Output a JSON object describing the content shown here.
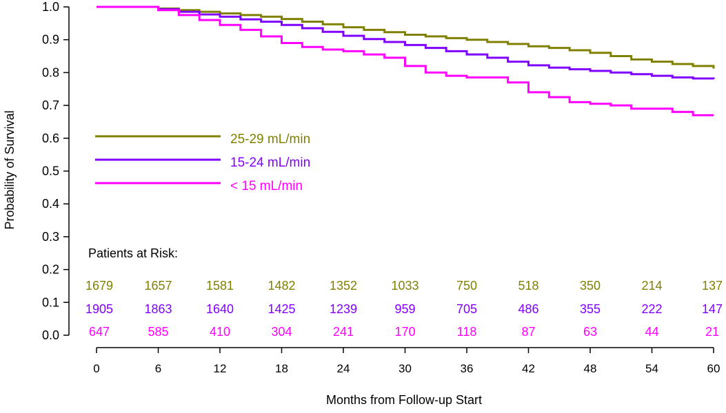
{
  "chart_data": {
    "type": "line",
    "title": "",
    "xlabel": "Months from Follow-up Start",
    "ylabel": "Probability of Survival",
    "xlim": [
      0,
      60
    ],
    "ylim": [
      0,
      1
    ],
    "xticks": [
      0,
      6,
      12,
      18,
      24,
      30,
      36,
      42,
      48,
      54,
      60
    ],
    "yticks": [
      "0.0",
      "0.1",
      "0.2",
      "0.3",
      "0.4",
      "0.5",
      "0.6",
      "0.7",
      "0.8",
      "0.9",
      "1.0"
    ],
    "grid": false,
    "legend_position": "left-middle",
    "series": [
      {
        "name": "25-29 mL/min",
        "color": "#808000",
        "x": [
          0,
          4,
          6,
          8,
          10,
          12,
          14,
          16,
          18,
          20,
          22,
          24,
          26,
          28,
          30,
          32,
          34,
          36,
          38,
          40,
          42,
          44,
          46,
          48,
          50,
          52,
          54,
          56,
          58,
          60
        ],
        "y": [
          1.0,
          1.0,
          0.995,
          0.99,
          0.985,
          0.98,
          0.975,
          0.97,
          0.963,
          0.955,
          0.947,
          0.938,
          0.93,
          0.923,
          0.915,
          0.91,
          0.905,
          0.9,
          0.893,
          0.887,
          0.88,
          0.875,
          0.868,
          0.86,
          0.85,
          0.84,
          0.833,
          0.826,
          0.82,
          0.812
        ]
      },
      {
        "name": "15-24 mL/min",
        "color": "#8000ff",
        "x": [
          0,
          4,
          6,
          8,
          10,
          12,
          14,
          16,
          18,
          20,
          22,
          24,
          26,
          28,
          30,
          32,
          34,
          36,
          38,
          40,
          42,
          44,
          46,
          48,
          50,
          52,
          54,
          56,
          58,
          60
        ],
        "y": [
          1.0,
          1.0,
          0.993,
          0.985,
          0.977,
          0.97,
          0.962,
          0.955,
          0.945,
          0.935,
          0.924,
          0.912,
          0.902,
          0.893,
          0.884,
          0.875,
          0.865,
          0.855,
          0.845,
          0.833,
          0.822,
          0.815,
          0.81,
          0.805,
          0.8,
          0.795,
          0.79,
          0.785,
          0.782,
          0.78
        ]
      },
      {
        "name": "< 15 mL/min",
        "color": "#ff00ff",
        "x": [
          0,
          4,
          6,
          8,
          10,
          12,
          14,
          16,
          18,
          20,
          22,
          24,
          26,
          28,
          30,
          32,
          34,
          36,
          38,
          40,
          42,
          44,
          46,
          48,
          50,
          52,
          54,
          56,
          58,
          60
        ],
        "y": [
          1.0,
          1.0,
          0.99,
          0.975,
          0.96,
          0.945,
          0.93,
          0.91,
          0.89,
          0.878,
          0.87,
          0.865,
          0.855,
          0.845,
          0.82,
          0.8,
          0.79,
          0.785,
          0.785,
          0.77,
          0.74,
          0.725,
          0.71,
          0.705,
          0.7,
          0.69,
          0.69,
          0.68,
          0.67,
          0.67
        ]
      }
    ],
    "risk_table": {
      "label": "Patients at Risk:",
      "rows": [
        {
          "color": "#808000",
          "values": [
            "1679",
            "1657",
            "1581",
            "1482",
            "1352",
            "1033",
            "750",
            "518",
            "350",
            "214",
            "137"
          ]
        },
        {
          "color": "#8000ff",
          "values": [
            "1905",
            "1863",
            "1640",
            "1425",
            "1239",
            "959",
            "705",
            "486",
            "355",
            "222",
            "147"
          ]
        },
        {
          "color": "#ff00ff",
          "values": [
            "647",
            "585",
            "410",
            "304",
            "241",
            "170",
            "118",
            "87",
            "63",
            "44",
            "21"
          ]
        }
      ]
    }
  }
}
